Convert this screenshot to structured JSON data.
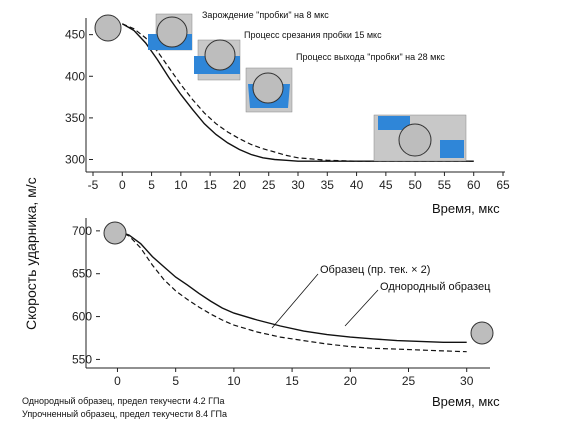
{
  "y_label": "Скорость ударника, м/с",
  "captions": [
    "Однородный образец, предел текучести 4.2 ГПа",
    "Упрочненный образец, предел текучести 8.4 ГПа"
  ],
  "colors": {
    "blue": "#2f86d8",
    "grey": "#bdbdbd",
    "mesh": "#9a9a9a"
  },
  "chart_data": [
    {
      "type": "line",
      "xlabel": "Время, мкс",
      "xlim": [
        -5,
        65
      ],
      "ylim": [
        285,
        470
      ],
      "x_ticks": [
        -5,
        0,
        5,
        10,
        15,
        20,
        25,
        30,
        35,
        40,
        45,
        50,
        55,
        60,
        65
      ],
      "y_ticks": [
        300,
        350,
        400,
        450
      ],
      "annotations": [
        "Зарождение \"пробки\" на 8 мкс",
        "Процесс срезания пробки 15 мкс",
        "Процесс выхода \"пробки\" на 28 мкс"
      ],
      "series": [
        {
          "style": "solid",
          "x": [
            0,
            2,
            4,
            6,
            8,
            10,
            12,
            14,
            16,
            18,
            20,
            22,
            24,
            26,
            28,
            30,
            35,
            40,
            45,
            50,
            55,
            60
          ],
          "y": [
            463,
            455,
            440,
            420,
            398,
            378,
            360,
            343,
            330,
            320,
            312,
            306,
            302,
            300,
            299,
            298,
            298,
            298,
            298,
            298,
            298,
            298
          ]
        },
        {
          "style": "dashed",
          "x": [
            0,
            2,
            4,
            6,
            8,
            10,
            12,
            14,
            16,
            18,
            20,
            22,
            24,
            26,
            28,
            30,
            35,
            40,
            45,
            50,
            55,
            60
          ],
          "y": [
            463,
            457,
            446,
            430,
            410,
            390,
            372,
            356,
            343,
            333,
            325,
            318,
            313,
            309,
            305,
            302,
            299,
            298,
            298,
            298,
            298,
            298
          ]
        }
      ]
    },
    {
      "type": "line",
      "xlabel": "Время, мкс",
      "xlim": [
        -1.5,
        32
      ],
      "ylim": [
        540,
        715
      ],
      "x_ticks": [
        0,
        5,
        10,
        15,
        20,
        25,
        30
      ],
      "y_ticks": [
        550,
        600,
        650,
        700
      ],
      "series": [
        {
          "name": "Образец (пр. тек. × 2)",
          "style": "solid",
          "x": [
            0,
            1,
            2,
            3,
            4,
            5,
            6,
            7,
            8,
            9,
            10,
            12,
            14,
            16,
            18,
            20,
            22,
            24,
            26,
            28,
            30
          ],
          "y": [
            700,
            695,
            685,
            670,
            658,
            646,
            637,
            627,
            618,
            610,
            604,
            596,
            589,
            583,
            579,
            576,
            574,
            572,
            571,
            570,
            570
          ]
        },
        {
          "name": "Однородный образец",
          "style": "dashed",
          "x": [
            0,
            1,
            2,
            3,
            4,
            5,
            6,
            7,
            8,
            9,
            10,
            12,
            14,
            16,
            18,
            20,
            22,
            24,
            26,
            28,
            30
          ],
          "y": [
            700,
            694,
            680,
            660,
            643,
            630,
            620,
            611,
            603,
            596,
            590,
            582,
            576,
            572,
            568,
            565,
            563,
            562,
            561,
            560,
            559
          ]
        }
      ]
    }
  ]
}
